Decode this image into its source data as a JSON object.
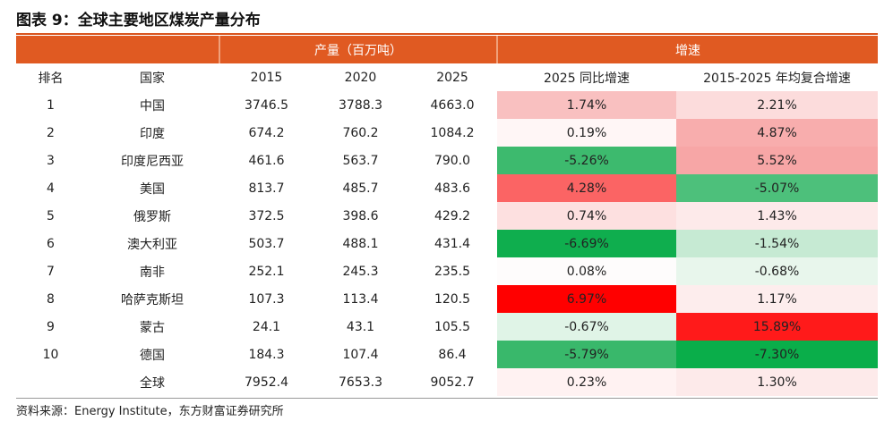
{
  "header": {
    "title": "图表 9：全球主要地区煤炭产量分布"
  },
  "table": {
    "group_headers": [
      "产量（百万吨）",
      "增速"
    ],
    "columns": [
      "排名",
      "国家",
      "2015",
      "2020",
      "2025",
      "2025 同比增速",
      "2015-2025 年均复合增速"
    ],
    "rows": [
      [
        "1",
        "中国",
        "3746.5",
        "3788.3",
        "4663.0",
        "1.74%",
        "2.21%"
      ],
      [
        "2",
        "印度",
        "674.2",
        "760.2",
        "1084.2",
        "0.19%",
        "4.87%"
      ],
      [
        "3",
        "印度尼西亚",
        "461.6",
        "563.7",
        "790.0",
        "-5.26%",
        "5.52%"
      ],
      [
        "4",
        "美国",
        "813.7",
        "485.7",
        "483.6",
        "4.28%",
        "-5.07%"
      ],
      [
        "5",
        "俄罗斯",
        "372.5",
        "398.6",
        "429.2",
        "0.74%",
        "1.43%"
      ],
      [
        "6",
        "澳大利亚",
        "503.7",
        "488.1",
        "431.4",
        "-6.69%",
        "-1.54%"
      ],
      [
        "7",
        "南非",
        "252.1",
        "245.3",
        "235.5",
        "0.08%",
        "-0.68%"
      ],
      [
        "8",
        "哈萨克斯坦",
        "107.3",
        "113.4",
        "120.5",
        "6.97%",
        "1.17%"
      ],
      [
        "9",
        "蒙古",
        "24.1",
        "43.1",
        "105.5",
        "-0.67%",
        "15.89%"
      ],
      [
        "10",
        "德国",
        "184.3",
        "107.4",
        "86.4",
        "-5.79%",
        "-7.30%"
      ],
      [
        null,
        "全球",
        "7952.4",
        "7653.3",
        "9052.7",
        "0.23%",
        "1.30%"
      ]
    ]
  },
  "footer": {
    "source": "资料来源：Energy Institute，东方财富证券研究所"
  }
}
